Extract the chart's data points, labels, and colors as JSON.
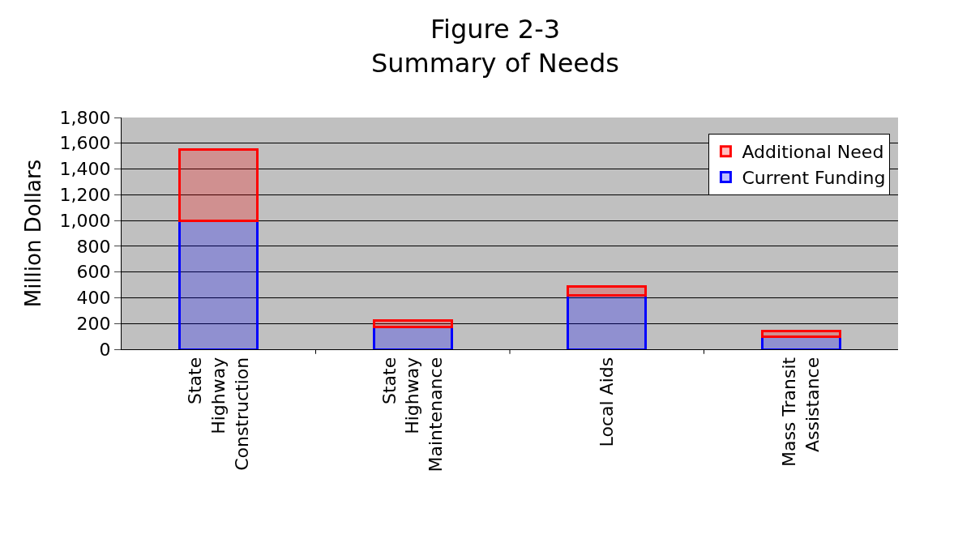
{
  "chart_data": {
    "type": "bar",
    "title": "Figure 2-3\nSummary of Needs",
    "ylabel": "Million Dollars",
    "categories": [
      "State\nHighway\nConstruction",
      "State\nHighway\nMaintenance",
      "Local Aids",
      "Mass Transit\nAssistance"
    ],
    "stacked": true,
    "series": [
      {
        "name": "Current Funding",
        "color": "#0000ff",
        "values": [
          1000,
          175,
          420,
          100
        ]
      },
      {
        "name": "Additional Need",
        "color": "#ff0000",
        "values": [
          550,
          50,
          70,
          40
        ]
      }
    ],
    "ylim": [
      0,
      1800
    ],
    "yticks": [
      0,
      200,
      400,
      600,
      800,
      {
        "value": 1000,
        "label": "1,000"
      },
      {
        "value": 1200,
        "label": "1,200"
      },
      {
        "value": 1400,
        "label": "1,400"
      },
      {
        "value": 1600,
        "label": "1,600"
      },
      {
        "value": 1800,
        "label": "1,800"
      }
    ],
    "grid": "y",
    "legend": "top right"
  }
}
